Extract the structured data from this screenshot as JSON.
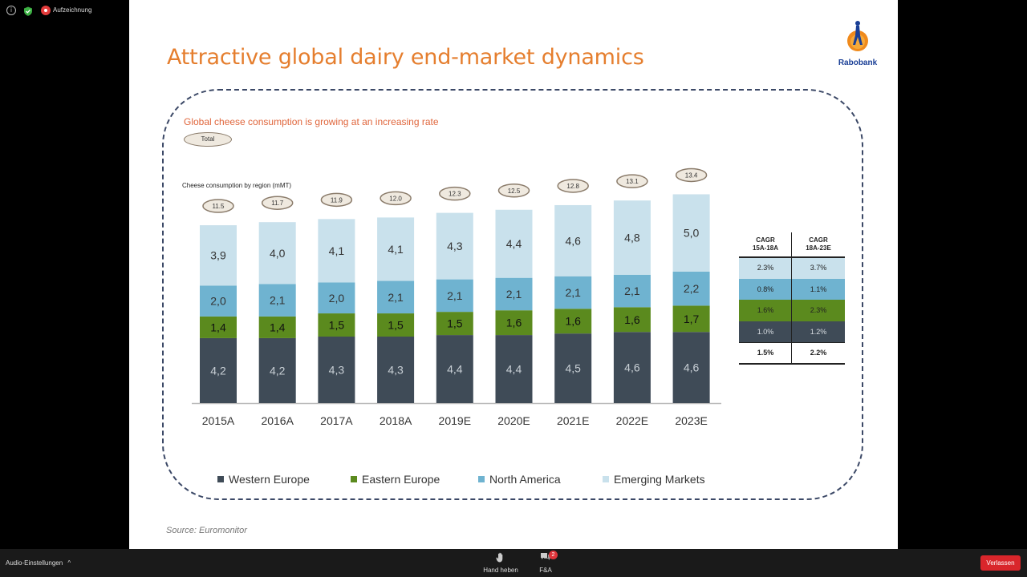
{
  "topbar": {
    "recording_label": "Aufzeichnung"
  },
  "slide": {
    "title": "Attractive global dairy end-market dynamics",
    "logo_text": "Rabobank",
    "subtitle": "Global cheese consumption is growing at an increasing rate",
    "total_label": "Total",
    "chart_label": "Cheese consumption by region (mMT)",
    "source": "Source: Euromonitor"
  },
  "chart_data": {
    "type": "bar",
    "stacked": true,
    "title": "Cheese consumption by region (mMT)",
    "categories": [
      "2015A",
      "2016A",
      "2017A",
      "2018A",
      "2019E",
      "2020E",
      "2021E",
      "2022E",
      "2023E"
    ],
    "series": [
      {
        "name": "Western Europe",
        "color": "#3f4b57",
        "values": [
          4.2,
          4.2,
          4.3,
          4.3,
          4.4,
          4.4,
          4.5,
          4.6,
          4.6
        ],
        "labels": [
          "4,2",
          "4,2",
          "4,3",
          "4,3",
          "4,4",
          "4,4",
          "4,5",
          "4,6",
          "4,6"
        ]
      },
      {
        "name": "Eastern Europe",
        "color": "#5b8a1e",
        "values": [
          1.4,
          1.4,
          1.5,
          1.5,
          1.5,
          1.6,
          1.6,
          1.6,
          1.7
        ],
        "labels": [
          "1,4",
          "1,4",
          "1,5",
          "1,5",
          "1,5",
          "1,6",
          "1,6",
          "1,6",
          "1,7"
        ]
      },
      {
        "name": "North America",
        "color": "#6fb3d0",
        "values": [
          2.0,
          2.1,
          2.0,
          2.1,
          2.1,
          2.1,
          2.1,
          2.1,
          2.2
        ],
        "labels": [
          "2,0",
          "2,1",
          "2,0",
          "2,1",
          "2,1",
          "2,1",
          "2,1",
          "2,1",
          "2,2"
        ]
      },
      {
        "name": "Emerging Markets",
        "color": "#c9e1ec",
        "values": [
          3.9,
          4.0,
          4.1,
          4.1,
          4.3,
          4.4,
          4.6,
          4.8,
          5.0
        ],
        "labels": [
          "3,9",
          "4,0",
          "4,1",
          "4,1",
          "4,3",
          "4,4",
          "4,6",
          "4,8",
          "5,0"
        ]
      }
    ],
    "totals": [
      "11.5",
      "11.7",
      "11.9",
      "12.0",
      "12.3",
      "12.5",
      "12.8",
      "13.1",
      "13.4"
    ],
    "total_values": [
      11.5,
      11.7,
      11.9,
      12.0,
      12.3,
      12.5,
      12.8,
      13.1,
      13.4
    ],
    "ylim": [
      0,
      14
    ],
    "legend": [
      "Western Europe",
      "Eastern Europe",
      "North America",
      "Emerging Markets"
    ],
    "legend_placement": "bottom"
  },
  "cagr_table": {
    "headers": [
      "CAGR\n15A-18A",
      "CAGR\n18A-23E"
    ],
    "header_1_line1": "CAGR",
    "header_1_line2": "15A-18A",
    "header_2_line1": "CAGR",
    "header_2_line2": "18A-23E",
    "rows": [
      {
        "region": "Emerging Markets",
        "color": "#c9e1ec",
        "cagr_15_18": "2.3%",
        "cagr_18_23": "3.7%"
      },
      {
        "region": "North America",
        "color": "#6fb3d0",
        "cagr_15_18": "0.8%",
        "cagr_18_23": "1.1%"
      },
      {
        "region": "Eastern Europe",
        "color": "#5b8a1e",
        "cagr_15_18": "1.6%",
        "cagr_18_23": "2.3%"
      },
      {
        "region": "Western Europe",
        "color": "#3f4b57",
        "cagr_15_18": "1.0%",
        "cagr_18_23": "1.2%"
      },
      {
        "region": "Total",
        "color": "#ffffff",
        "cagr_15_18": "1.5%",
        "cagr_18_23": "2.2%"
      }
    ]
  },
  "bottombar": {
    "audio_settings_label": "Audio-Einstellungen",
    "raise_hand_label": "Hand heben",
    "qa_label": "F&A",
    "qa_badge": "2",
    "leave_label": "Verlassen"
  }
}
